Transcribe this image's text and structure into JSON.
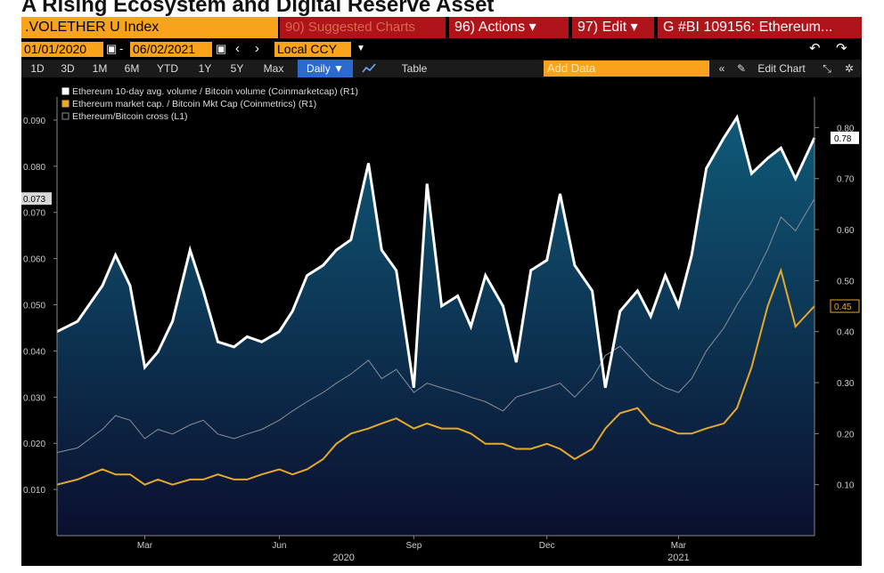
{
  "page_title": "A Rising Ecosystem and Digital Reserve Asset",
  "terminal": {
    "ticker": ".VOLETHER U Index",
    "suggested": "90) Suggested Charts",
    "actions": "96) Actions ▾",
    "edit": "97) Edit ▾",
    "chart_id": "G #BI 109156: Ethereum...",
    "start_date": "01/01/2020",
    "end_date": "06/02/2021",
    "date_sep": "-",
    "currency": "Local CCY",
    "nav_prev": "‹",
    "nav_next": "›",
    "undo": "↶",
    "redo": "↷",
    "periods": [
      "1D",
      "3D",
      "1M",
      "6M",
      "YTD",
      "1Y",
      "5Y",
      "Max"
    ],
    "frequency": "Daily ▼",
    "table_label": "Table",
    "add_data": "Add Data",
    "edit_chart": "Edit Chart"
  },
  "colors": {
    "volume": "#ffffff",
    "mktcap": "#e6a92a",
    "cross": "#8a8f9a",
    "fill_top": "#0f5a78",
    "fill_bottom": "#0b0f2e",
    "background": "#000000"
  },
  "chart_data": {
    "type": "line",
    "x": [
      "2020-01-01",
      "2020-01-15",
      "2020-02-01",
      "2020-02-10",
      "2020-02-20",
      "2020-03-01",
      "2020-03-10",
      "2020-03-20",
      "2020-04-01",
      "2020-04-10",
      "2020-04-20",
      "2020-05-01",
      "2020-05-10",
      "2020-05-20",
      "2020-06-01",
      "2020-06-10",
      "2020-06-20",
      "2020-07-01",
      "2020-07-10",
      "2020-07-20",
      "2020-08-01",
      "2020-08-10",
      "2020-08-20",
      "2020-09-01",
      "2020-09-10",
      "2020-09-20",
      "2020-10-01",
      "2020-10-10",
      "2020-10-20",
      "2020-11-01",
      "2020-11-10",
      "2020-11-20",
      "2020-12-01",
      "2020-12-10",
      "2020-12-20",
      "2021-01-01",
      "2021-01-10",
      "2021-01-20",
      "2021-02-01",
      "2021-02-10",
      "2021-02-20",
      "2021-03-01",
      "2021-03-10",
      "2021-03-20",
      "2021-04-01",
      "2021-04-10",
      "2021-04-20",
      "2021-05-01",
      "2021-05-10",
      "2021-05-20",
      "2021-06-02"
    ],
    "x_tick_labels": [
      "Mar",
      "Jun",
      "Sep",
      "Dec",
      "Mar"
    ],
    "x_year_labels": [
      "2020",
      "2021"
    ],
    "series": [
      {
        "name": "Ethereum 10-day avg. volume / Bitcoin volume (Coinmarketcap) (R1)",
        "axis": "right",
        "values": [
          0.4,
          0.42,
          0.49,
          0.55,
          0.49,
          0.33,
          0.36,
          0.42,
          0.56,
          0.48,
          0.38,
          0.37,
          0.39,
          0.38,
          0.4,
          0.44,
          0.51,
          0.53,
          0.56,
          0.58,
          0.73,
          0.56,
          0.52,
          0.29,
          0.69,
          0.45,
          0.47,
          0.41,
          0.51,
          0.45,
          0.34,
          0.52,
          0.54,
          0.67,
          0.53,
          0.48,
          0.29,
          0.44,
          0.48,
          0.43,
          0.51,
          0.45,
          0.55,
          0.72,
          0.78,
          0.82,
          0.71,
          0.74,
          0.76,
          0.7,
          0.78
        ]
      },
      {
        "name": "Ethereum market cap. / Bitcoin Mkt Cap (Coinmetrics) (R1)",
        "axis": "right",
        "values": [
          0.1,
          0.11,
          0.13,
          0.12,
          0.12,
          0.1,
          0.11,
          0.1,
          0.11,
          0.11,
          0.12,
          0.11,
          0.11,
          0.12,
          0.13,
          0.12,
          0.13,
          0.15,
          0.18,
          0.2,
          0.21,
          0.22,
          0.23,
          0.21,
          0.22,
          0.21,
          0.21,
          0.2,
          0.18,
          0.18,
          0.17,
          0.17,
          0.18,
          0.17,
          0.15,
          0.17,
          0.21,
          0.24,
          0.25,
          0.22,
          0.21,
          0.2,
          0.2,
          0.21,
          0.22,
          0.25,
          0.33,
          0.45,
          0.52,
          0.41,
          0.45
        ]
      },
      {
        "name": "Ethereum/Bitcoin cross (L1)",
        "axis": "left",
        "values": [
          0.018,
          0.019,
          0.023,
          0.026,
          0.025,
          0.021,
          0.023,
          0.022,
          0.024,
          0.025,
          0.022,
          0.021,
          0.022,
          0.023,
          0.025,
          0.027,
          0.029,
          0.031,
          0.033,
          0.035,
          0.038,
          0.034,
          0.036,
          0.031,
          0.033,
          0.032,
          0.031,
          0.03,
          0.029,
          0.027,
          0.03,
          0.031,
          0.032,
          0.033,
          0.03,
          0.034,
          0.039,
          0.041,
          0.037,
          0.034,
          0.032,
          0.031,
          0.034,
          0.04,
          0.045,
          0.05,
          0.055,
          0.062,
          0.069,
          0.066,
          0.073
        ]
      }
    ],
    "left_axis": {
      "ylim": [
        0.0,
        0.095
      ],
      "ticks": [
        "0.010",
        "0.020",
        "0.030",
        "0.040",
        "0.050",
        "0.060",
        "0.070",
        "0.080",
        "0.090"
      ],
      "last_value": "0.073"
    },
    "right_axis": {
      "ylim": [
        0.0,
        0.86
      ],
      "ticks": [
        "0.10",
        "0.20",
        "0.30",
        "0.40",
        "0.50",
        "0.60",
        "0.70",
        "0.80"
      ],
      "last_values": [
        "0.78",
        "0.45"
      ]
    },
    "legend_position": "top-left",
    "grid": false
  }
}
